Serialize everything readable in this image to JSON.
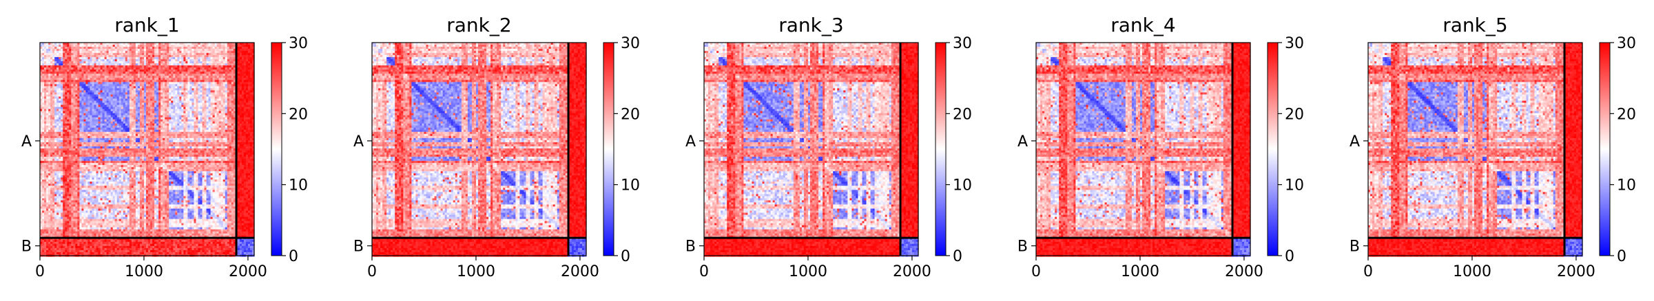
{
  "figure": {
    "colors": {
      "low": "#0000ff",
      "mid": "#ffffff",
      "high": "#ff0000",
      "axis": "#000000"
    }
  },
  "chart_data": [
    {
      "type": "heatmap",
      "title": "rank_1",
      "xlabel": "",
      "ylabel": "",
      "xlim": [
        0,
        2060
      ],
      "xticks": [
        0,
        1000,
        2000
      ],
      "xticklabels": [
        "0",
        "1000",
        "2000"
      ],
      "ytick_positions": [
        950,
        1965
      ],
      "yticklabels": [
        "A",
        "B"
      ],
      "chain_boundary": 1888,
      "colorbar": {
        "cmap": "bwr",
        "vmin": 0,
        "vmax": 30,
        "ticks": [
          0,
          10,
          20,
          30
        ],
        "ticklabels": [
          "0",
          "10",
          "20",
          "30"
        ]
      },
      "b_row_tone": "mixed"
    },
    {
      "type": "heatmap",
      "title": "rank_2",
      "xlabel": "",
      "ylabel": "",
      "xlim": [
        0,
        2060
      ],
      "xticks": [
        0,
        1000,
        2000
      ],
      "xticklabels": [
        "0",
        "1000",
        "2000"
      ],
      "ytick_positions": [
        950,
        1965
      ],
      "yticklabels": [
        "A",
        "B"
      ],
      "chain_boundary": 1888,
      "colorbar": {
        "cmap": "bwr",
        "vmin": 0,
        "vmax": 30,
        "ticks": [
          0,
          10,
          20,
          30
        ],
        "ticklabels": [
          "0",
          "10",
          "20",
          "30"
        ]
      },
      "b_row_tone": "red"
    },
    {
      "type": "heatmap",
      "title": "rank_3",
      "xlabel": "",
      "ylabel": "",
      "xlim": [
        0,
        2060
      ],
      "xticks": [
        0,
        1000,
        2000
      ],
      "xticklabels": [
        "0",
        "1000",
        "2000"
      ],
      "ytick_positions": [
        950,
        1965
      ],
      "yticklabels": [
        "A",
        "B"
      ],
      "chain_boundary": 1888,
      "colorbar": {
        "cmap": "bwr",
        "vmin": 0,
        "vmax": 30,
        "ticks": [
          0,
          10,
          20,
          30
        ],
        "ticklabels": [
          "0",
          "10",
          "20",
          "30"
        ]
      },
      "b_row_tone": "red"
    },
    {
      "type": "heatmap",
      "title": "rank_4",
      "xlabel": "",
      "ylabel": "",
      "xlim": [
        0,
        2060
      ],
      "xticks": [
        0,
        1000,
        2000
      ],
      "xticklabels": [
        "0",
        "1000",
        "2000"
      ],
      "ytick_positions": [
        950,
        1965
      ],
      "yticklabels": [
        "A",
        "B"
      ],
      "chain_boundary": 1888,
      "colorbar": {
        "cmap": "bwr",
        "vmin": 0,
        "vmax": 30,
        "ticks": [
          0,
          10,
          20,
          30
        ],
        "ticklabels": [
          "0",
          "10",
          "20",
          "30"
        ]
      },
      "b_row_tone": "red"
    },
    {
      "type": "heatmap",
      "title": "rank_5",
      "xlabel": "",
      "ylabel": "",
      "xlim": [
        0,
        2060
      ],
      "xticks": [
        0,
        1000,
        2000
      ],
      "xticklabels": [
        "0",
        "1000",
        "2000"
      ],
      "ytick_positions": [
        950,
        1965
      ],
      "yticklabels": [
        "A",
        "B"
      ],
      "chain_boundary": 1888,
      "colorbar": {
        "cmap": "bwr",
        "vmin": 0,
        "vmax": 30,
        "ticks": [
          0,
          10,
          20,
          30
        ],
        "ticklabels": [
          "0",
          "10",
          "20",
          "30"
        ]
      },
      "b_row_tone": "red"
    }
  ]
}
